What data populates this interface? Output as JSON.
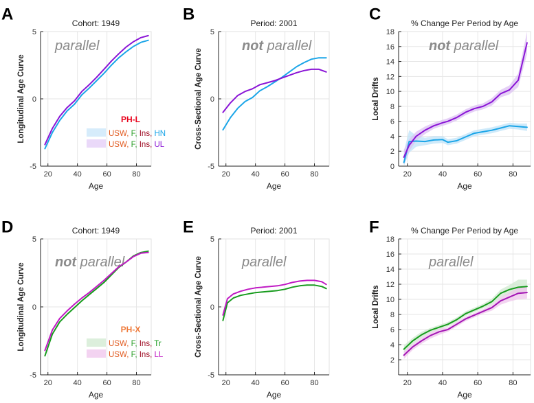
{
  "chart_data": [
    {
      "id": "A",
      "type": "line",
      "title": "Cohort: 1949",
      "xlabel": "Age",
      "ylabel": "Longitudinal Age Curve",
      "xlim": [
        15,
        90
      ],
      "ylim": [
        -5,
        5
      ],
      "xticks": [
        20,
        40,
        60,
        80
      ],
      "xtick_labels": [
        "20",
        "40",
        "60",
        "80"
      ],
      "yticks": [
        -5,
        0,
        5
      ],
      "ytick_labels": [
        "-5",
        "0",
        "5"
      ],
      "annotation": {
        "bold": "",
        "rest": "parallel"
      },
      "legend": {
        "title": "PH-L",
        "title_color": "#e8001a",
        "position": "bottom-right",
        "entries": [
          {
            "parts": [
              "USW,",
              "F,",
              "Ins,",
              "HN"
            ],
            "swatch": "#d6ecfb"
          },
          {
            "parts": [
              "USW,",
              "F,",
              "Ins,",
              "UL"
            ],
            "swatch": "#ead9f9"
          }
        ]
      },
      "series": [
        {
          "name": "HN",
          "color": "#1aa5e8",
          "x": [
            18,
            23,
            28,
            33,
            38,
            43,
            48,
            53,
            58,
            63,
            68,
            73,
            78,
            83,
            88
          ],
          "y": [
            -3.7,
            -2.5,
            -1.6,
            -0.9,
            -0.4,
            0.3,
            0.8,
            1.35,
            1.9,
            2.5,
            3.05,
            3.5,
            3.9,
            4.2,
            4.35
          ]
        },
        {
          "name": "UL",
          "color": "#8a14d6",
          "x": [
            18,
            23,
            28,
            33,
            38,
            43,
            48,
            53,
            58,
            63,
            68,
            73,
            78,
            83,
            88
          ],
          "y": [
            -3.4,
            -2.2,
            -1.3,
            -0.65,
            -0.15,
            0.55,
            1.05,
            1.6,
            2.2,
            2.8,
            3.35,
            3.85,
            4.25,
            4.55,
            4.7
          ]
        }
      ]
    },
    {
      "id": "B",
      "type": "line",
      "title": "Period: 2001",
      "xlabel": "Age",
      "ylabel": "Cross-Sectional Age Curve",
      "xlim": [
        15,
        90
      ],
      "ylim": [
        -5,
        5
      ],
      "xticks": [
        20,
        40,
        60,
        80
      ],
      "xtick_labels": [
        "20",
        "40",
        "60",
        "80"
      ],
      "yticks": [
        -5,
        0,
        5
      ],
      "ytick_labels": [
        "-5",
        "0",
        "5"
      ],
      "annotation": {
        "bold": "not",
        "rest": " parallel"
      },
      "series": [
        {
          "name": "HN",
          "color": "#1aa5e8",
          "x": [
            18,
            23,
            28,
            33,
            38,
            43,
            48,
            53,
            58,
            63,
            68,
            73,
            78,
            83,
            88
          ],
          "y": [
            -2.3,
            -1.4,
            -0.7,
            -0.2,
            0.1,
            0.6,
            0.9,
            1.25,
            1.6,
            2.0,
            2.4,
            2.7,
            2.95,
            3.05,
            3.05
          ]
        },
        {
          "name": "UL",
          "color": "#8a14d6",
          "x": [
            18,
            23,
            28,
            33,
            38,
            43,
            48,
            53,
            58,
            63,
            68,
            73,
            78,
            83,
            88
          ],
          "y": [
            -1.0,
            -0.3,
            0.25,
            0.55,
            0.75,
            1.05,
            1.2,
            1.35,
            1.55,
            1.75,
            1.95,
            2.1,
            2.2,
            2.2,
            2.0
          ]
        }
      ]
    },
    {
      "id": "C",
      "type": "line",
      "title": "% Change Per Period by Age",
      "xlabel": "Age",
      "ylabel": "Local Drifts",
      "xlim": [
        15,
        90
      ],
      "ylim": [
        0,
        18
      ],
      "xticks": [
        20,
        40,
        60,
        80
      ],
      "xtick_labels": [
        "20",
        "40",
        "60",
        "80"
      ],
      "yticks": [
        0,
        2,
        4,
        6,
        8,
        10,
        12,
        14,
        16,
        18
      ],
      "ytick_labels": [
        "0",
        "2",
        "4",
        "6",
        "8",
        "10",
        "12",
        "14",
        "16",
        "18"
      ],
      "annotation": {
        "bold": "not",
        "rest": " parallel"
      },
      "series": [
        {
          "name": "HN",
          "color": "#1aa5e8",
          "band": "#bfe3f8",
          "x": [
            18,
            21,
            25,
            30,
            35,
            40,
            43,
            48,
            53,
            58,
            63,
            68,
            73,
            78,
            83,
            88
          ],
          "y": [
            0.5,
            3.3,
            3.35,
            3.3,
            3.5,
            3.55,
            3.2,
            3.4,
            3.9,
            4.4,
            4.6,
            4.8,
            5.1,
            5.4,
            5.3,
            5.2
          ],
          "lo": [
            0.0,
            1.8,
            2.6,
            2.8,
            3.0,
            3.1,
            2.8,
            3.0,
            3.5,
            4.0,
            4.2,
            4.4,
            4.7,
            5.0,
            4.9,
            4.7
          ],
          "hi": [
            2.0,
            4.8,
            4.1,
            3.8,
            4.0,
            4.0,
            3.6,
            3.8,
            4.3,
            4.8,
            5.0,
            5.2,
            5.5,
            5.8,
            5.7,
            5.7
          ]
        },
        {
          "name": "UL",
          "color": "#8a14d6",
          "band": "#dcc1f3",
          "x": [
            18,
            21,
            25,
            30,
            35,
            40,
            43,
            48,
            53,
            58,
            63,
            68,
            73,
            78,
            83,
            88
          ],
          "y": [
            1.2,
            2.8,
            4.0,
            4.8,
            5.4,
            5.8,
            6.0,
            6.5,
            7.2,
            7.7,
            8.0,
            8.6,
            9.7,
            10.2,
            11.5,
            16.5
          ],
          "lo": [
            0.2,
            2.0,
            3.4,
            4.3,
            5.0,
            5.4,
            5.6,
            6.1,
            6.8,
            7.3,
            7.6,
            8.1,
            9.2,
            9.6,
            10.6,
            15.0
          ],
          "hi": [
            2.2,
            3.6,
            4.6,
            5.3,
            5.8,
            6.2,
            6.4,
            6.9,
            7.6,
            8.1,
            8.4,
            9.1,
            10.2,
            10.8,
            12.4,
            18.0
          ]
        }
      ]
    },
    {
      "id": "D",
      "type": "line",
      "title": "Cohort: 1949",
      "xlabel": "Age",
      "ylabel": "Longitudinal Age Curve",
      "xlim": [
        15,
        90
      ],
      "ylim": [
        -5,
        5
      ],
      "xticks": [
        20,
        40,
        60,
        80
      ],
      "xtick_labels": [
        "20",
        "40",
        "60",
        "80"
      ],
      "yticks": [
        -5,
        0,
        5
      ],
      "ytick_labels": [
        "-5",
        "0",
        "5"
      ],
      "annotation": {
        "bold": "not",
        "rest": " parallel"
      },
      "legend": {
        "title": "PH-X",
        "title_color": "#ef7a3a",
        "position": "bottom-right",
        "entries": [
          {
            "parts": [
              "USW,",
              "F,",
              "Ins,",
              "Tr"
            ],
            "swatch": "#dcefdc"
          },
          {
            "parts": [
              "USW,",
              "F,",
              "Ins,",
              "LL"
            ],
            "swatch": "#f3d3f1"
          }
        ]
      },
      "series": [
        {
          "name": "Tr",
          "color": "#179b1d",
          "x": [
            18,
            23,
            28,
            33,
            38,
            43,
            48,
            53,
            58,
            63,
            68,
            73,
            78,
            83,
            88
          ],
          "y": [
            -3.6,
            -2.0,
            -1.1,
            -0.55,
            -0.05,
            0.45,
            0.9,
            1.35,
            1.8,
            2.35,
            2.9,
            3.3,
            3.75,
            4.0,
            4.1
          ]
        },
        {
          "name": "LL",
          "color": "#c01ac4",
          "x": [
            18,
            23,
            28,
            33,
            38,
            43,
            48,
            53,
            58,
            63,
            68,
            73,
            78,
            83,
            88
          ],
          "y": [
            -3.2,
            -1.7,
            -0.85,
            -0.3,
            0.2,
            0.65,
            1.05,
            1.5,
            1.95,
            2.45,
            2.95,
            3.3,
            3.7,
            3.95,
            4.0
          ]
        }
      ]
    },
    {
      "id": "E",
      "type": "line",
      "title": "Period: 2001",
      "xlabel": "Age",
      "ylabel": "Cross-Sectional Age Curve",
      "xlim": [
        15,
        90
      ],
      "ylim": [
        -5,
        5
      ],
      "xticks": [
        20,
        40,
        60,
        80
      ],
      "xtick_labels": [
        "20",
        "40",
        "60",
        "80"
      ],
      "yticks": [
        -5,
        0,
        5
      ],
      "ytick_labels": [
        "-5",
        "0",
        "5"
      ],
      "annotation": {
        "bold": "",
        "rest": "parallel"
      },
      "series": [
        {
          "name": "Tr",
          "color": "#179b1d",
          "x": [
            18,
            21,
            25,
            30,
            35,
            40,
            45,
            50,
            55,
            60,
            65,
            70,
            75,
            80,
            85,
            88
          ],
          "y": [
            -1.0,
            0.3,
            0.65,
            0.85,
            0.95,
            1.05,
            1.1,
            1.15,
            1.2,
            1.3,
            1.45,
            1.55,
            1.6,
            1.6,
            1.5,
            1.35
          ]
        },
        {
          "name": "LL",
          "color": "#c01ac4",
          "x": [
            18,
            21,
            25,
            30,
            35,
            40,
            45,
            50,
            55,
            60,
            65,
            70,
            75,
            80,
            85,
            88
          ],
          "y": [
            -0.6,
            0.6,
            0.95,
            1.15,
            1.3,
            1.4,
            1.45,
            1.5,
            1.55,
            1.65,
            1.8,
            1.9,
            1.95,
            1.95,
            1.85,
            1.65
          ]
        }
      ]
    },
    {
      "id": "F",
      "type": "line",
      "title": "% Change Per Period by Age",
      "xlabel": "Age",
      "ylabel": "Local Drifts",
      "xlim": [
        15,
        90
      ],
      "ylim": [
        0,
        18
      ],
      "xticks": [
        20,
        40,
        60,
        80
      ],
      "xtick_labels": [
        "20",
        "40",
        "60",
        "80"
      ],
      "yticks": [
        2,
        4,
        6,
        8,
        10,
        12,
        14,
        16,
        18
      ],
      "ytick_labels": [
        "2",
        "4",
        "6",
        "8",
        "10",
        "12",
        "14",
        "16",
        "18"
      ],
      "annotation": {
        "bold": "",
        "rest": "parallel"
      },
      "series": [
        {
          "name": "Tr",
          "color": "#179b1d",
          "band": "#cfe8cf",
          "x": [
            18,
            23,
            28,
            33,
            38,
            43,
            48,
            53,
            58,
            63,
            68,
            73,
            78,
            83,
            88
          ],
          "y": [
            3.4,
            4.5,
            5.3,
            5.9,
            6.3,
            6.7,
            7.3,
            8.1,
            8.6,
            9.1,
            9.7,
            10.8,
            11.3,
            11.6,
            11.7
          ],
          "lo": [
            2.9,
            4.1,
            4.9,
            5.6,
            6.0,
            6.4,
            7.0,
            7.8,
            8.3,
            8.8,
            9.3,
            10.3,
            10.7,
            10.8,
            10.9
          ],
          "hi": [
            3.9,
            4.9,
            5.7,
            6.2,
            6.6,
            7.0,
            7.6,
            8.4,
            8.9,
            9.4,
            10.1,
            11.3,
            11.9,
            12.6,
            12.6
          ]
        },
        {
          "name": "LL",
          "color": "#a315b4",
          "band": "#efc5ec",
          "x": [
            18,
            23,
            28,
            33,
            38,
            43,
            48,
            53,
            58,
            63,
            68,
            73,
            78,
            83,
            88
          ],
          "y": [
            2.6,
            3.7,
            4.5,
            5.2,
            5.7,
            6.0,
            6.7,
            7.4,
            7.9,
            8.4,
            8.9,
            9.8,
            10.3,
            10.8,
            10.9
          ],
          "lo": [
            2.1,
            3.3,
            4.1,
            4.8,
            5.3,
            5.7,
            6.4,
            7.1,
            7.6,
            8.1,
            8.5,
            9.3,
            9.7,
            10.0,
            10.1
          ],
          "hi": [
            3.1,
            4.1,
            4.9,
            5.6,
            6.1,
            6.3,
            7.0,
            7.7,
            8.2,
            8.7,
            9.3,
            10.3,
            10.9,
            11.6,
            11.7
          ]
        }
      ]
    }
  ],
  "legend_part_colors": [
    "#e15a1f",
    "#2b9e28",
    "#a01027"
  ]
}
